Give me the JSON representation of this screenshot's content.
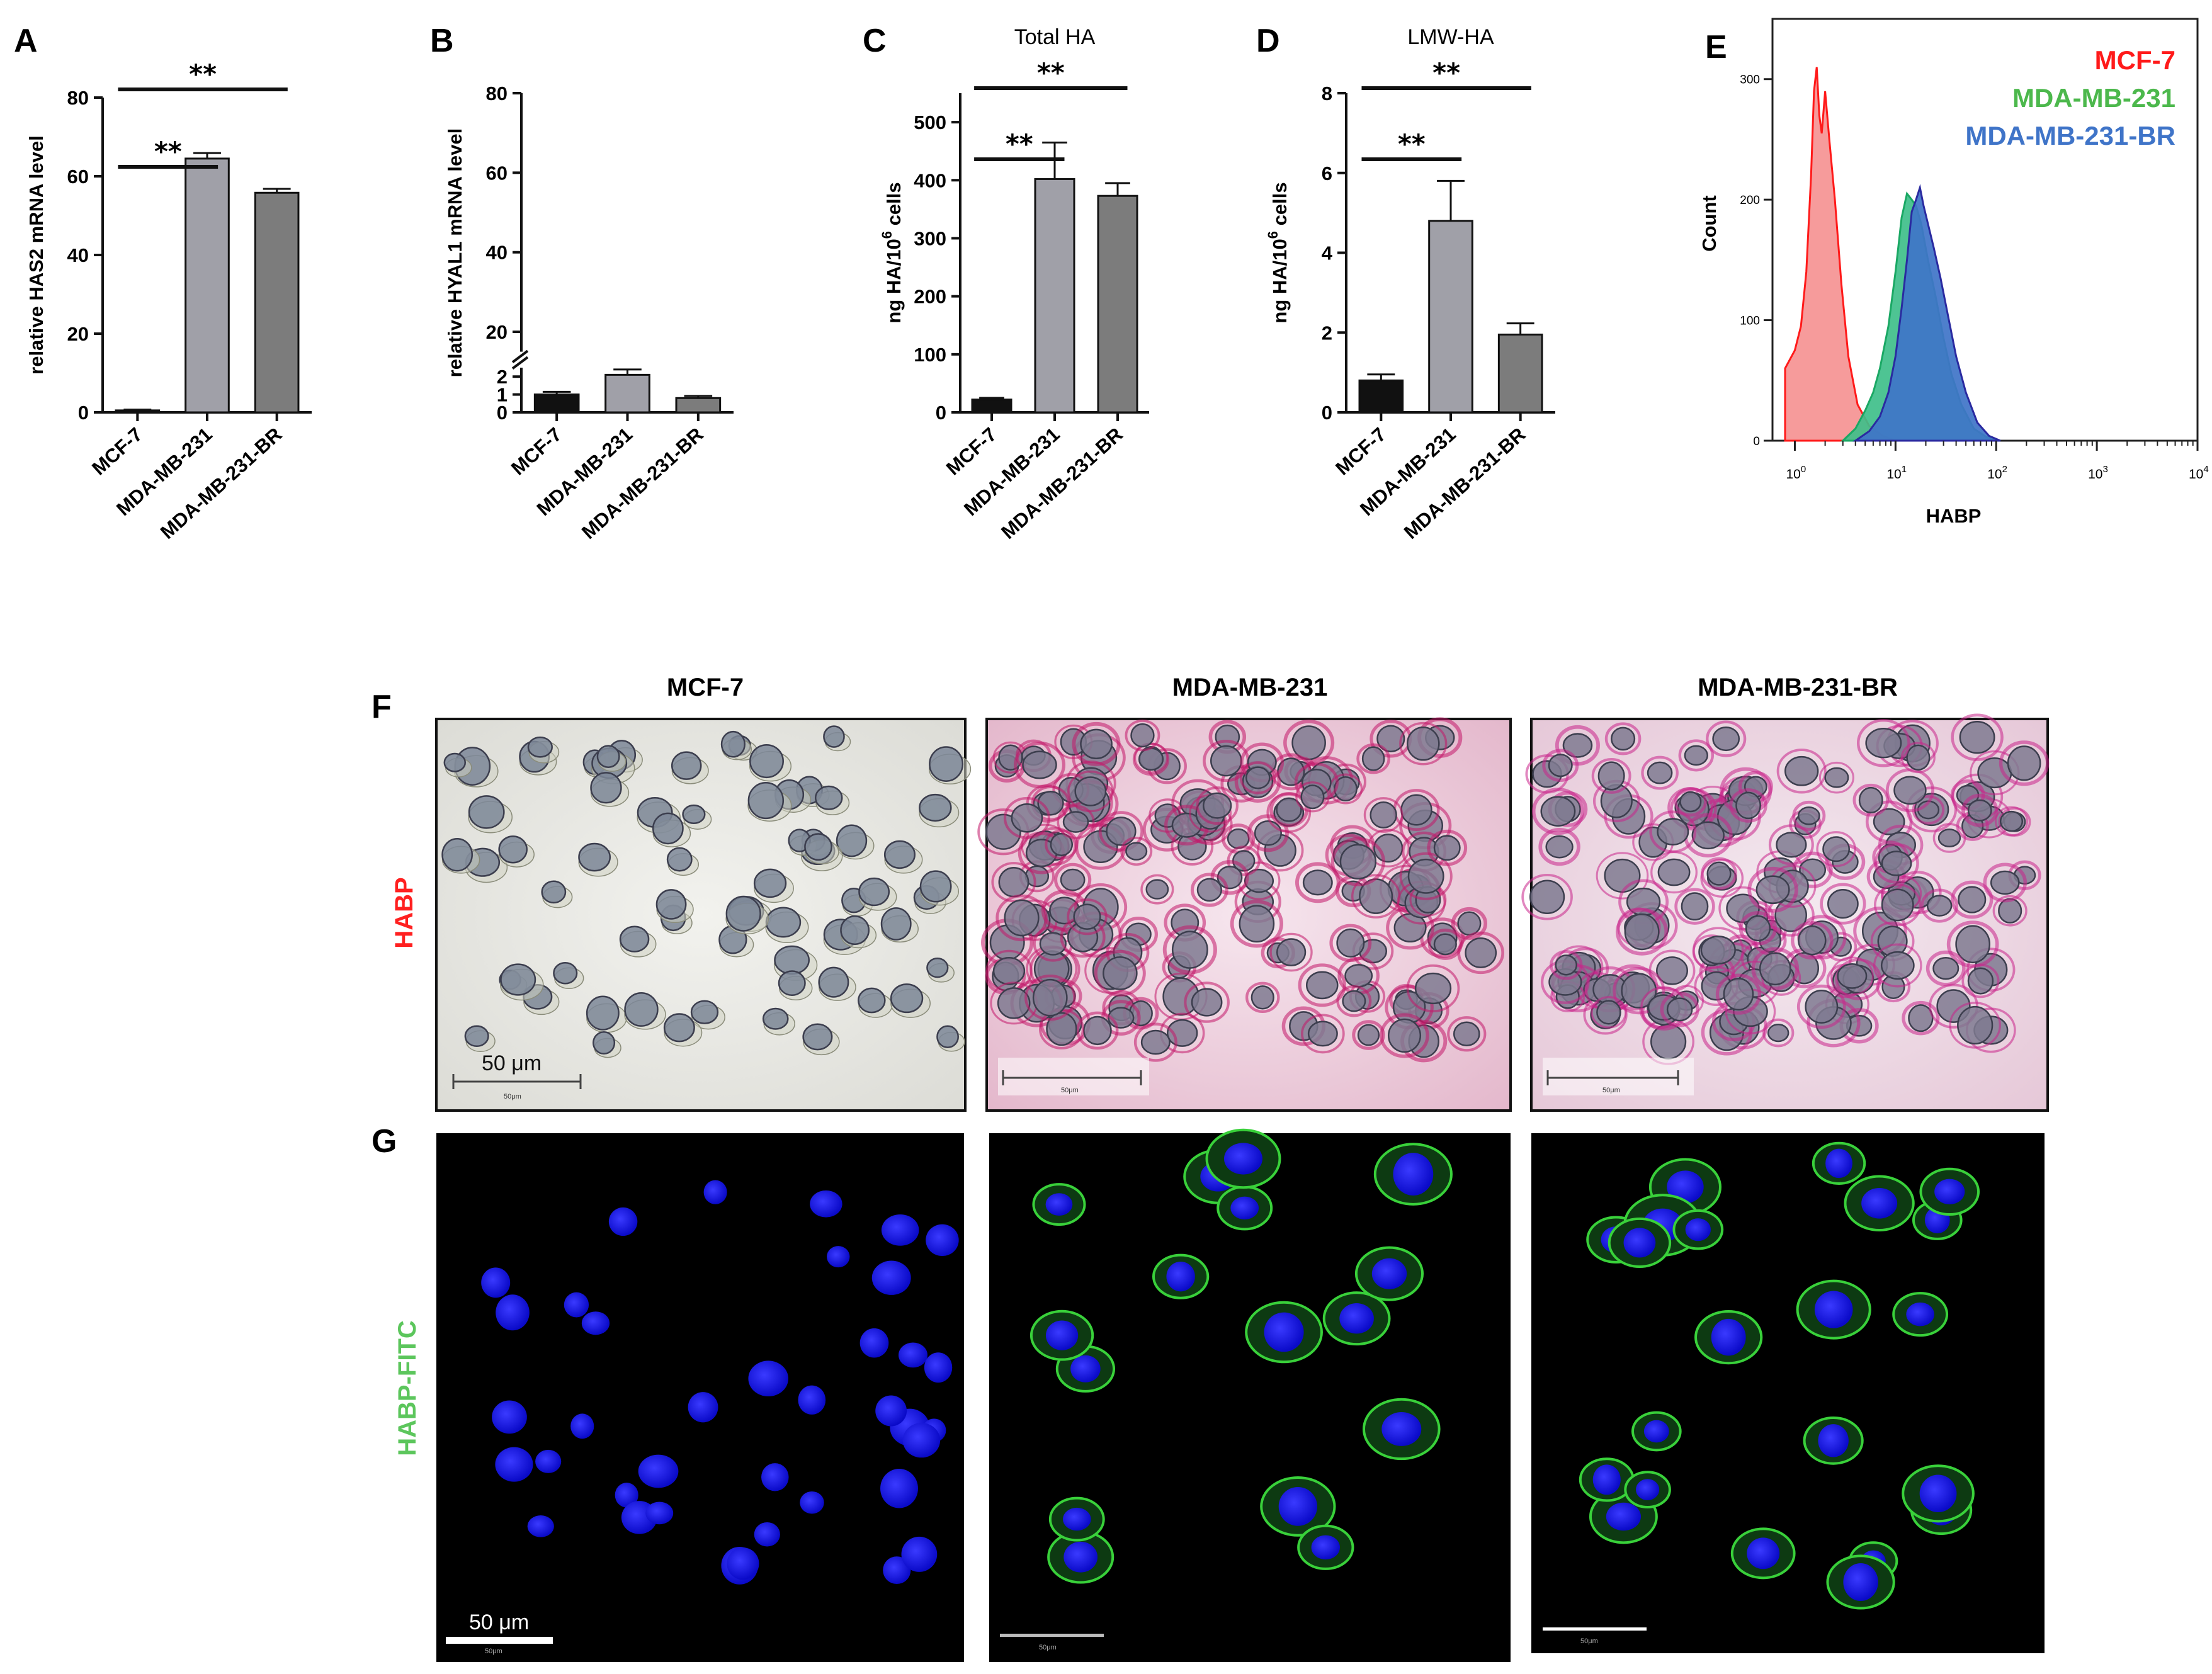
{
  "panels": {
    "A": {
      "letter": "A"
    },
    "B": {
      "letter": "B"
    },
    "C": {
      "letter": "C"
    },
    "D": {
      "letter": "D"
    },
    "E": {
      "letter": "E"
    },
    "F": {
      "letter": "F"
    },
    "G": {
      "letter": "G"
    }
  },
  "chart_data": [
    {
      "panel": "A",
      "type": "bar",
      "title": "",
      "ylabel": "relative HAS2 mRNA level",
      "categories": [
        "MCF-7",
        "MDA-MB-231",
        "MDA-MB-231-BR"
      ],
      "values": [
        0.5,
        64.5,
        55.8
      ],
      "errors": [
        0.2,
        1.4,
        1.0
      ],
      "colors": [
        "#111111",
        "#a0a0a8",
        "#7c7c7c"
      ],
      "ylim": [
        0,
        80
      ],
      "yticks": [
        0,
        20,
        40,
        60,
        80
      ],
      "significance": [
        {
          "from": 0,
          "to": 1,
          "label": "**"
        },
        {
          "from": 0,
          "to": 2,
          "label": "**"
        }
      ]
    },
    {
      "panel": "B",
      "type": "bar",
      "title": "",
      "ylabel": "relative HYAL1 mRNA level",
      "categories": [
        "MCF-7",
        "MDA-MB-231",
        "MDA-MB-231-BR"
      ],
      "values": [
        1.0,
        2.1,
        0.8
      ],
      "errors": [
        0.15,
        0.3,
        0.12
      ],
      "colors": [
        "#111111",
        "#a0a0a8",
        "#7c7c7c"
      ],
      "ylim": [
        0,
        80
      ],
      "axis_break": [
        2.5,
        15
      ],
      "yticks": [
        0,
        1,
        2,
        20,
        40,
        60,
        80
      ],
      "significance": []
    },
    {
      "panel": "C",
      "type": "bar",
      "title": "Total HA",
      "ylabel": "ng HA/10",
      "ylabel_sup": "6",
      "ylabel_tail": " cells",
      "categories": [
        "MCF-7",
        "MDA-MB-231",
        "MDA-MB-231-BR"
      ],
      "values": [
        22,
        402,
        373
      ],
      "errors": [
        3,
        63,
        22
      ],
      "colors": [
        "#111111",
        "#a0a0a8",
        "#7c7c7c"
      ],
      "ylim": [
        0,
        550
      ],
      "yticks": [
        0,
        100,
        200,
        300,
        400,
        500
      ],
      "significance": [
        {
          "from": 0,
          "to": 1,
          "label": "**"
        },
        {
          "from": 0,
          "to": 2,
          "label": "**"
        }
      ]
    },
    {
      "panel": "D",
      "type": "bar",
      "title": "LMW-HA",
      "ylabel": "ng HA/10",
      "ylabel_sup": "6",
      "ylabel_tail": " cells",
      "categories": [
        "MCF-7",
        "MDA-MB-231",
        "MDA-MB-231-BR"
      ],
      "values": [
        0.8,
        4.8,
        1.95
      ],
      "errors": [
        0.15,
        1.0,
        0.28
      ],
      "colors": [
        "#111111",
        "#a0a0a8",
        "#7c7c7c"
      ],
      "ylim": [
        0,
        8
      ],
      "yticks": [
        0,
        2,
        4,
        6,
        8
      ],
      "significance": [
        {
          "from": 0,
          "to": 1,
          "label": "**"
        },
        {
          "from": 0,
          "to": 2,
          "label": "**"
        }
      ]
    },
    {
      "panel": "E",
      "type": "area",
      "title": "",
      "xlabel": "HABP",
      "ylabel": "Count",
      "x_scale": "log",
      "xlim": [
        0.6,
        10000
      ],
      "ylim": [
        0,
        350
      ],
      "yticks": [
        0,
        100,
        200,
        300
      ],
      "xticks": [
        {
          "base": "10",
          "exp": "0",
          "value": 1
        },
        {
          "base": "10",
          "exp": "1",
          "value": 10
        },
        {
          "base": "10",
          "exp": "2",
          "value": 100
        },
        {
          "base": "10",
          "exp": "3",
          "value": 1000
        },
        {
          "base": "10",
          "exp": "4",
          "value": 10000
        }
      ],
      "series": [
        {
          "name": "MCF-7",
          "color": "#ff1a1a",
          "fill": "#f48a8a",
          "x": [
            0.8,
            1.0,
            1.15,
            1.3,
            1.45,
            1.55,
            1.65,
            1.75,
            1.85,
            2.0,
            2.2,
            2.5,
            2.9,
            3.4,
            4.2,
            5.5,
            7.5,
            10
          ],
          "y": [
            60,
            75,
            95,
            140,
            220,
            290,
            310,
            270,
            255,
            290,
            250,
            200,
            130,
            70,
            30,
            12,
            4,
            0
          ]
        },
        {
          "name": "MDA-MB-231",
          "color": "#1aa864",
          "fill": "#3fbf8a",
          "x": [
            3,
            4,
            5,
            6,
            7,
            8.5,
            10,
            11.5,
            13,
            14.5,
            16,
            18,
            21,
            25,
            30,
            36,
            45,
            60,
            80,
            110
          ],
          "y": [
            0,
            10,
            25,
            40,
            60,
            95,
            140,
            185,
            205,
            200,
            195,
            180,
            150,
            120,
            85,
            55,
            30,
            10,
            3,
            0
          ]
        },
        {
          "name": "MDA-MB-231-BR",
          "color": "#2a2aa0",
          "fill": "#3f74c8",
          "x": [
            4,
            5.5,
            7,
            8.5,
            10,
            11.5,
            13,
            14.5,
            16,
            17.5,
            19,
            21,
            24,
            28,
            33,
            40,
            50,
            65,
            85,
            110
          ],
          "y": [
            0,
            8,
            20,
            40,
            70,
            110,
            150,
            190,
            200,
            210,
            195,
            180,
            160,
            135,
            105,
            70,
            40,
            15,
            4,
            0
          ]
        }
      ]
    }
  ],
  "legend_E": [
    {
      "label": "MCF-7",
      "color": "#ff1a1a"
    },
    {
      "label": "MDA-MB-231",
      "color": "#4cb84c"
    },
    {
      "label": "MDA-MB-231-BR",
      "color": "#3f74c8"
    }
  ],
  "micrographs": {
    "columns": [
      "MCF-7",
      "MDA-MB-231",
      "MDA-MB-231-BR"
    ],
    "rows": [
      {
        "label": "HABP",
        "color": "#ff2020"
      },
      {
        "label": "HABP-FITC",
        "color": "#5cc65c"
      }
    ],
    "scale_bar_label": "50 μm",
    "scale_bar_small": "50μm"
  }
}
